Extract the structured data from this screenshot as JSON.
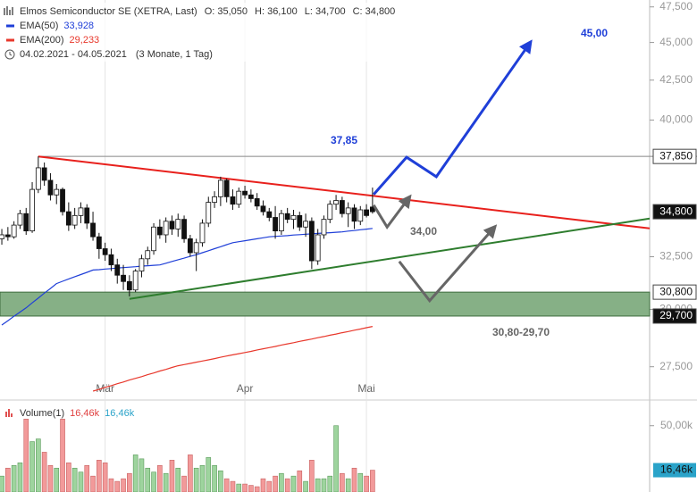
{
  "chart_data": {
    "type": "candlestick",
    "title": "Elmos Semiconductor SE (XETRA, Last)",
    "ohlc_labels": [
      "O: 35,050",
      "H: 36,100",
      "L: 34,700",
      "C: 34,800"
    ],
    "period": "04.02.2021 - 04.05.2021",
    "period_note": "(3 Monate, 1 Tag)",
    "categories": [
      null,
      null,
      null,
      null,
      null,
      null,
      null,
      null,
      null,
      null,
      null,
      null,
      null,
      null,
      null,
      null,
      null,
      "Mär",
      null,
      null,
      null,
      null,
      null,
      null,
      null,
      null,
      null,
      null,
      null,
      null,
      null,
      null,
      null,
      null,
      null,
      null,
      null,
      null,
      null,
      null,
      "Apr",
      null,
      null,
      null,
      null,
      null,
      null,
      null,
      null,
      null,
      null,
      null,
      null,
      null,
      null,
      null,
      null,
      null,
      null,
      null,
      "Mai",
      null
    ],
    "open": [
      33.4,
      33.6,
      33.5,
      34.1,
      34.7,
      33.8,
      36.0,
      37.2,
      36.5,
      35.7,
      36.0,
      34.8,
      34.1,
      34.6,
      35.0,
      34.2,
      33.5,
      32.9,
      32.6,
      32.1,
      31.6,
      31.3,
      30.9,
      31.8,
      32.4,
      32.8,
      34.0,
      33.6,
      34.3,
      33.9,
      34.4,
      33.4,
      32.7,
      33.2,
      34.2,
      35.3,
      35.6,
      36.5,
      35.6,
      35.2,
      35.9,
      35.7,
      35.5,
      35.1,
      34.8,
      34.5,
      33.8,
      34.7,
      34.4,
      34.6,
      34.0,
      34.3,
      32.3,
      33.6,
      34.4,
      35.2,
      35.4,
      34.7,
      35.0,
      34.3,
      34.9,
      35.05
    ],
    "high": [
      33.9,
      34.0,
      34.3,
      34.9,
      35.0,
      36.4,
      37.85,
      37.5,
      36.9,
      36.3,
      36.1,
      35.3,
      35.0,
      35.3,
      35.2,
      34.8,
      33.7,
      33.2,
      32.9,
      32.4,
      32.1,
      31.6,
      31.9,
      32.6,
      33.0,
      34.2,
      34.4,
      34.5,
      34.6,
      34.7,
      34.6,
      33.6,
      33.4,
      34.4,
      35.6,
      35.9,
      36.7,
      36.6,
      36.0,
      36.1,
      36.2,
      36.0,
      35.8,
      35.4,
      35.0,
      35.1,
      34.9,
      35.0,
      34.9,
      34.8,
      34.7,
      34.5,
      33.9,
      34.6,
      35.4,
      35.7,
      35.6,
      35.3,
      35.2,
      35.1,
      35.2,
      36.1
    ],
    "low": [
      33.1,
      33.3,
      33.4,
      33.9,
      33.6,
      33.7,
      35.8,
      36.2,
      35.4,
      35.2,
      34.6,
      33.8,
      33.9,
      34.2,
      33.9,
      33.3,
      32.4,
      32.3,
      31.8,
      31.2,
      30.9,
      30.6,
      30.8,
      31.5,
      32.1,
      32.6,
      33.4,
      33.2,
      33.6,
      33.5,
      33.2,
      32.5,
      31.8,
      33.0,
      34.0,
      35.0,
      35.1,
      35.3,
      34.9,
      35.0,
      35.5,
      35.3,
      34.9,
      34.6,
      34.3,
      33.4,
      33.6,
      34.2,
      33.9,
      33.8,
      33.5,
      31.9,
      32.1,
      33.4,
      34.2,
      34.9,
      34.5,
      34.0,
      33.9,
      34.1,
      34.5,
      34.7
    ],
    "close": [
      33.6,
      33.5,
      34.1,
      34.7,
      33.8,
      36.0,
      37.2,
      36.5,
      35.7,
      36.0,
      34.8,
      34.1,
      34.6,
      35.0,
      34.2,
      33.5,
      32.9,
      32.6,
      32.1,
      31.6,
      31.3,
      30.9,
      31.8,
      32.4,
      32.8,
      34.0,
      33.6,
      34.3,
      33.9,
      34.4,
      33.4,
      32.7,
      33.2,
      34.2,
      35.3,
      35.6,
      36.5,
      35.6,
      35.2,
      35.9,
      35.7,
      35.5,
      35.1,
      34.8,
      34.5,
      33.8,
      34.7,
      34.4,
      34.6,
      34.0,
      34.3,
      32.3,
      33.6,
      34.4,
      35.2,
      35.4,
      34.7,
      35.0,
      34.3,
      34.9,
      34.6,
      34.8
    ],
    "up_color": "#ffffff",
    "down_color": "#111111",
    "series": [
      {
        "name": "EMA(50)",
        "last_label": "33,928",
        "color": "#1f3fd8",
        "values": [
          29.3,
          29.49,
          29.69,
          29.88,
          30.07,
          30.3,
          30.52,
          30.75,
          30.97,
          31.2,
          31.31,
          31.42,
          31.53,
          31.63,
          31.74,
          31.85,
          31.87,
          31.9,
          31.92,
          31.95,
          31.97,
          31.99,
          32.01,
          32.04,
          32.06,
          32.08,
          32.1,
          32.18,
          32.27,
          32.35,
          32.43,
          32.52,
          32.6,
          32.7,
          32.8,
          32.9,
          33.0,
          33.1,
          33.2,
          33.25,
          33.3,
          33.35,
          33.4,
          33.45,
          33.5,
          33.52,
          33.54,
          33.56,
          33.59,
          33.61,
          33.63,
          33.65,
          33.67,
          33.69,
          33.71,
          33.73,
          33.75,
          33.79,
          33.82,
          33.86,
          33.89,
          33.928
        ]
      },
      {
        "name": "EMA(200)",
        "last_label": "29,233",
        "color": "#e8382c",
        "values": [
          null,
          null,
          null,
          null,
          null,
          null,
          null,
          null,
          null,
          null,
          null,
          null,
          null,
          null,
          null,
          26.5,
          26.57,
          26.65,
          26.72,
          26.8,
          26.87,
          26.95,
          27.02,
          27.09,
          27.17,
          27.24,
          27.32,
          27.39,
          27.47,
          27.54,
          27.59,
          27.64,
          27.69,
          27.74,
          27.79,
          27.84,
          27.9,
          27.95,
          28.0,
          28.05,
          28.1,
          28.15,
          28.21,
          28.26,
          28.31,
          28.36,
          28.42,
          28.47,
          28.52,
          28.58,
          28.63,
          28.68,
          28.74,
          28.79,
          28.85,
          28.9,
          28.96,
          29.01,
          29.07,
          29.12,
          29.18,
          29.233
        ]
      }
    ],
    "xlim": [
      -0.3,
      106.6
    ],
    "ylim": [
      26.25,
      48
    ],
    "log_y": true,
    "yticks": [
      {
        "value": 47.5,
        "label": "47,500"
      },
      {
        "value": 45,
        "label": "45,000"
      },
      {
        "value": 42.5,
        "label": "42,500"
      },
      {
        "value": 40,
        "label": "40,000"
      },
      {
        "value": 32.5,
        "label": "32,500"
      },
      {
        "value": 30,
        "label": "30,000"
      },
      {
        "value": 27.5,
        "label": "27,500"
      }
    ],
    "axis_labels": [
      {
        "value": 37.85,
        "label": "37,850",
        "style": "light",
        "line": true
      },
      {
        "value": 34.8,
        "label": "34,800",
        "style": "dark"
      },
      {
        "value": 30.8,
        "label": "30,800",
        "style": "light"
      },
      {
        "value": 29.7,
        "label": "29,700",
        "style": "dark"
      }
    ],
    "zone": {
      "low": 29.7,
      "high": 30.8,
      "color": "#86b086"
    },
    "trendlines": [
      {
        "color": "#e8201c",
        "x": [
          6,
          106.6
        ],
        "y": [
          37.85,
          33.93
        ]
      },
      {
        "color": "#2e7d2e",
        "x": [
          21,
          106.6
        ],
        "y": [
          30.48,
          34.44
        ]
      }
    ],
    "scenarios": [
      {
        "color": "#1f3fd8",
        "x": [
          61.2,
          66.6,
          71.5,
          86.8
        ],
        "y": [
          35.73,
          37.8,
          36.7,
          44.9
        ]
      },
      {
        "color": "#666666",
        "x": [
          61.2,
          63.4,
          66.9
        ],
        "y": [
          35.15,
          34.0,
          35.5
        ]
      },
      {
        "color": "#666666",
        "x": [
          65.4,
          70.4,
          80.9
        ],
        "y": [
          32.27,
          30.4,
          33.93
        ]
      }
    ],
    "annotations": [
      {
        "text": "37,85",
        "color": "#1f3fd8"
      },
      {
        "text": "45,00",
        "color": "#1f3fd8"
      },
      {
        "text": "34,00",
        "color": "#666666"
      },
      {
        "text": "30,80-29,70",
        "color": "#666666"
      }
    ],
    "volume": {
      "name": "Volume(1)",
      "last_label": "16,46k",
      "values": [
        12,
        18,
        20,
        22,
        55,
        38,
        40,
        30,
        20,
        18,
        55,
        22,
        18,
        15,
        20,
        12,
        24,
        22,
        10,
        8,
        10,
        14,
        28,
        25,
        18,
        15,
        20,
        14,
        24,
        18,
        12,
        28,
        18,
        20,
        26,
        20,
        16,
        10,
        8,
        6,
        6,
        5,
        4,
        10,
        8,
        12,
        14,
        10,
        12,
        16,
        8,
        24,
        10,
        10,
        12,
        50,
        14,
        10,
        18,
        14,
        12,
        16.46
      ],
      "ylim": [
        0,
        68
      ],
      "yticks": [
        {
          "value": 50,
          "label": "50,00k"
        }
      ],
      "up_color": "#9ed49e",
      "down_color": "#f29a9a",
      "label_color": "#2aa3c9"
    }
  }
}
